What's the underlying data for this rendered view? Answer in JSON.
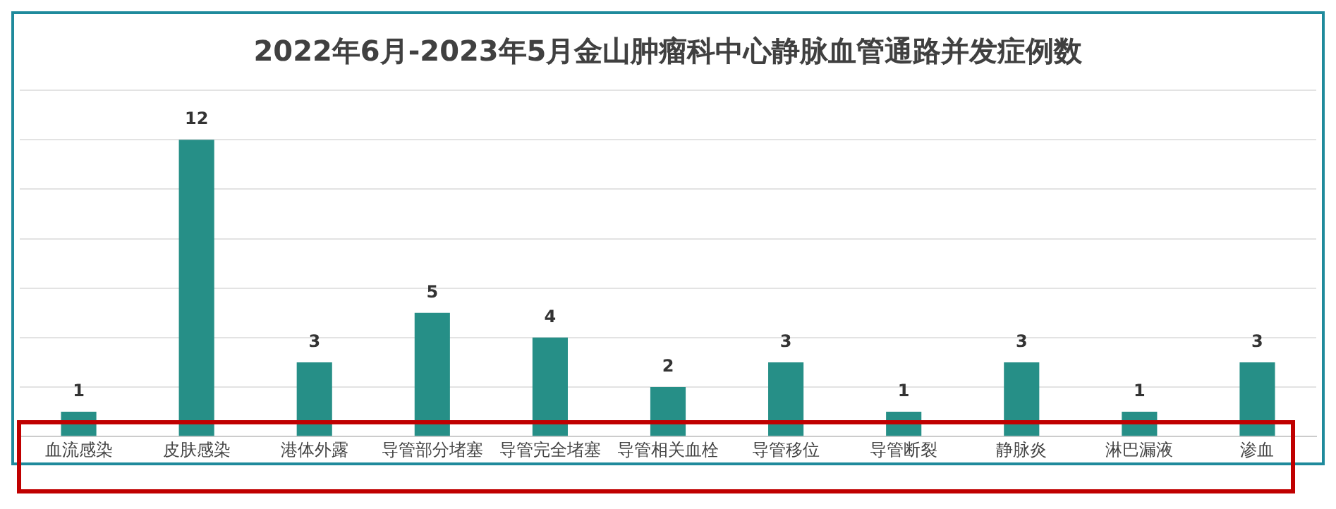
{
  "chart_data": {
    "type": "bar",
    "title": "2022年6月-2023年5月金山肿瘤科中心静脉血管通路并发症例数",
    "categories": [
      "血流感染",
      "皮肤感染",
      "港体外露",
      "导管部分堵塞",
      "导管完全堵塞",
      "导管相关血栓",
      "导管移位",
      "导管断裂",
      "静脉炎",
      "淋巴漏液",
      "渗血"
    ],
    "values": [
      1,
      12,
      3,
      5,
      4,
      2,
      3,
      1,
      3,
      1,
      3
    ],
    "color": "#268f87",
    "ylim": [
      0,
      14
    ],
    "yticks": [
      {
        "value": 0,
        "label": null
      },
      {
        "value": 2,
        "label": null
      },
      {
        "value": 4,
        "label": null
      },
      {
        "value": 6,
        "label": null
      },
      {
        "value": 8,
        "label": null
      },
      {
        "value": 10,
        "label": null
      },
      {
        "value": 12,
        "label": null
      },
      {
        "value": 14,
        "label": null
      }
    ],
    "tick_labels": "x",
    "grid": "y",
    "data_labels": true,
    "legend": false
  }
}
